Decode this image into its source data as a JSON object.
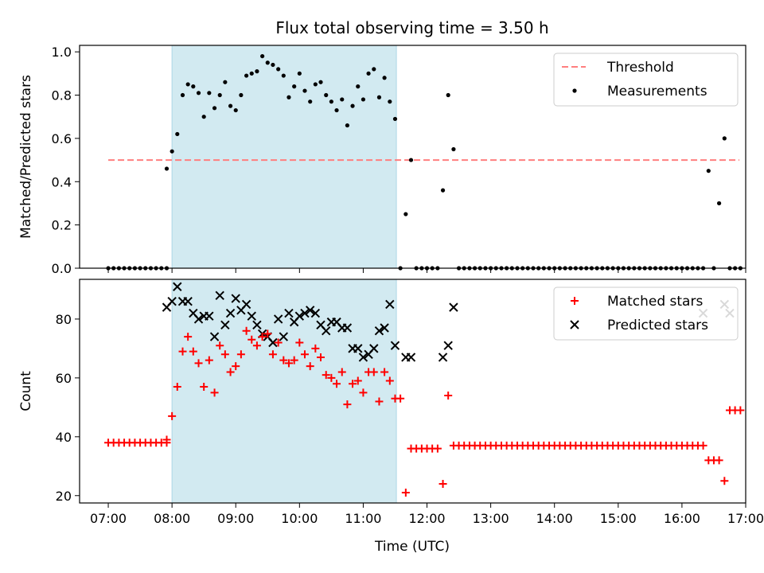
{
  "chart_data": {
    "title": "Flux total observing time = 3.50 h",
    "xlabel": "Time (UTC)",
    "xlim": [
      6.55,
      17.0
    ],
    "x_ticks": [
      {
        "v": 7,
        "label": "07:00"
      },
      {
        "v": 8,
        "label": "08:00"
      },
      {
        "v": 9,
        "label": "09:00"
      },
      {
        "v": 10,
        "label": "10:00"
      },
      {
        "v": 11,
        "label": "11:00"
      },
      {
        "v": 12,
        "label": "12:00"
      },
      {
        "v": 13,
        "label": "13:00"
      },
      {
        "v": 14,
        "label": "14:00"
      },
      {
        "v": 15,
        "label": "15:00"
      },
      {
        "v": 16,
        "label": "16:00"
      },
      {
        "v": 17,
        "label": "17:00"
      }
    ],
    "observing_window": {
      "start": 8.0,
      "end": 11.52,
      "color": "#add8e6"
    },
    "panels": [
      {
        "type": "scatter",
        "ylabel": "Matched/Predicted stars",
        "ylim": [
          0,
          1.03
        ],
        "y_ticks": [
          "0.0",
          "0.2",
          "0.4",
          "0.6",
          "0.8",
          "1.0"
        ],
        "legend": [
          "Threshold",
          "Measurements"
        ],
        "legend_position": "top-right",
        "threshold": {
          "name": "Threshold",
          "value": 0.5,
          "x_range": [
            7.0,
            16.9
          ],
          "color": "#ff7f7f"
        },
        "measurements": {
          "name": "Measurements",
          "color": "#000000",
          "x": [
            7.0,
            7.083,
            7.167,
            7.25,
            7.333,
            7.417,
            7.5,
            7.583,
            7.667,
            7.75,
            7.833,
            7.917,
            7.917,
            8.0,
            8.083,
            8.167,
            8.25,
            8.333,
            8.417,
            8.5,
            8.583,
            8.667,
            8.75,
            8.833,
            8.917,
            9.0,
            9.083,
            9.167,
            9.25,
            9.333,
            9.417,
            9.5,
            9.583,
            9.667,
            9.75,
            9.833,
            9.917,
            10.0,
            10.083,
            10.167,
            10.25,
            10.333,
            10.417,
            10.5,
            10.583,
            10.667,
            10.75,
            10.833,
            10.917,
            11.0,
            11.083,
            11.167,
            11.25,
            11.333,
            11.417,
            11.5,
            11.583,
            11.667,
            11.75,
            11.833,
            11.917,
            12.0,
            12.083,
            12.167,
            12.25,
            12.333,
            12.417,
            12.5,
            12.583,
            12.667,
            12.75,
            12.833,
            12.917,
            13.0,
            13.083,
            13.167,
            13.25,
            13.333,
            13.417,
            13.5,
            13.583,
            13.667,
            13.75,
            13.833,
            13.917,
            14.0,
            14.083,
            14.167,
            14.25,
            14.333,
            14.417,
            14.5,
            14.583,
            14.667,
            14.75,
            14.833,
            14.917,
            15.0,
            15.083,
            15.167,
            15.25,
            15.333,
            15.417,
            15.5,
            15.583,
            15.667,
            15.75,
            15.833,
            15.917,
            16.0,
            16.083,
            16.167,
            16.25,
            16.333,
            16.417,
            16.5,
            16.583,
            16.667,
            16.75,
            16.833,
            16.917
          ],
          "y": [
            0,
            0,
            0,
            0,
            0,
            0,
            0,
            0,
            0,
            0,
            0,
            0,
            0.46,
            0.54,
            0.62,
            0.8,
            0.85,
            0.84,
            0.81,
            0.7,
            0.81,
            0.74,
            0.8,
            0.86,
            0.75,
            0.73,
            0.8,
            0.89,
            0.9,
            0.91,
            0.98,
            0.95,
            0.94,
            0.92,
            0.89,
            0.79,
            0.84,
            0.9,
            0.82,
            0.77,
            0.85,
            0.86,
            0.8,
            0.77,
            0.73,
            0.78,
            0.66,
            0.75,
            0.84,
            0.78,
            0.9,
            0.92,
            0.79,
            0.88,
            0.77,
            0.69,
            0,
            0.25,
            0.5,
            0,
            0,
            0,
            0,
            0,
            0.36,
            0.8,
            0.55,
            0,
            0,
            0,
            0,
            0,
            0,
            0,
            0,
            0,
            0,
            0,
            0,
            0,
            0,
            0,
            0,
            0,
            0,
            0,
            0,
            0,
            0,
            0,
            0,
            0,
            0,
            0,
            0,
            0,
            0,
            0,
            0,
            0,
            0,
            0,
            0,
            0,
            0,
            0,
            0,
            0,
            0,
            0,
            0,
            0,
            0,
            0,
            0.45,
            0,
            0.3,
            0.6,
            0,
            0,
            0
          ]
        }
      },
      {
        "type": "scatter",
        "ylabel": "Count",
        "ylim": [
          17.5,
          93.5
        ],
        "y_ticks": [
          "20",
          "40",
          "60",
          "80"
        ],
        "legend": [
          "Matched stars",
          "Predicted stars"
        ],
        "legend_position": "top-right",
        "series": [
          {
            "name": "Matched stars",
            "marker": "plus",
            "color": "#ff0000",
            "x": [
              7.0,
              7.083,
              7.167,
              7.25,
              7.333,
              7.417,
              7.5,
              7.583,
              7.667,
              7.75,
              7.833,
              7.917,
              7.917,
              8.0,
              8.083,
              8.167,
              8.25,
              8.333,
              8.417,
              8.5,
              8.583,
              8.667,
              8.75,
              8.833,
              8.917,
              9.0,
              9.083,
              9.167,
              9.25,
              9.333,
              9.417,
              9.5,
              9.583,
              9.667,
              9.75,
              9.833,
              9.917,
              10.0,
              10.083,
              10.167,
              10.25,
              10.333,
              10.417,
              10.5,
              10.583,
              10.667,
              10.75,
              10.833,
              10.917,
              11.0,
              11.083,
              11.167,
              11.25,
              11.333,
              11.417,
              11.5,
              11.583,
              11.667,
              11.75,
              11.833,
              11.917,
              12.0,
              12.083,
              12.167,
              12.25,
              12.333,
              12.417,
              12.5,
              12.583,
              12.667,
              12.75,
              12.833,
              12.917,
              13.0,
              13.083,
              13.167,
              13.25,
              13.333,
              13.417,
              13.5,
              13.583,
              13.667,
              13.75,
              13.833,
              13.917,
              14.0,
              14.083,
              14.167,
              14.25,
              14.333,
              14.417,
              14.5,
              14.583,
              14.667,
              14.75,
              14.833,
              14.917,
              15.0,
              15.083,
              15.167,
              15.25,
              15.333,
              15.417,
              15.5,
              15.583,
              15.667,
              15.75,
              15.833,
              15.917,
              16.0,
              16.083,
              16.167,
              16.25,
              16.333,
              16.417,
              16.5,
              16.583,
              16.667,
              16.75,
              16.833,
              16.917
            ],
            "y": [
              38,
              38,
              38,
              38,
              38,
              38,
              38,
              38,
              38,
              38,
              38,
              38,
              39,
              47,
              57,
              69,
              74,
              69,
              65,
              57,
              66,
              55,
              71,
              68,
              62,
              64,
              68,
              76,
              73,
              71,
              74,
              75,
              68,
              72,
              66,
              65,
              66,
              72,
              68,
              64,
              70,
              67,
              61,
              60,
              58,
              62,
              51,
              58,
              59,
              55,
              62,
              62,
              52,
              62,
              59,
              53,
              53,
              21,
              36,
              36,
              36,
              36,
              36,
              36,
              24,
              54,
              37,
              37,
              37,
              37,
              37,
              37,
              37,
              37,
              37,
              37,
              37,
              37,
              37,
              37,
              37,
              37,
              37,
              37,
              37,
              37,
              37,
              37,
              37,
              37,
              37,
              37,
              37,
              37,
              37,
              37,
              37,
              37,
              37,
              37,
              37,
              37,
              37,
              37,
              37,
              37,
              37,
              37,
              37,
              37,
              37,
              37,
              37,
              37,
              32,
              32,
              32,
              25,
              49,
              49,
              49
            ]
          },
          {
            "name": "Predicted stars",
            "marker": "x",
            "color": "#000000",
            "x": [
              7.917,
              8.0,
              8.083,
              8.167,
              8.25,
              8.333,
              8.417,
              8.5,
              8.583,
              8.667,
              8.75,
              8.833,
              8.917,
              9.0,
              9.083,
              9.167,
              9.25,
              9.333,
              9.417,
              9.5,
              9.583,
              9.667,
              9.75,
              9.833,
              9.917,
              10.0,
              10.083,
              10.167,
              10.25,
              10.333,
              10.417,
              10.5,
              10.583,
              10.667,
              10.75,
              10.833,
              10.917,
              11.0,
              11.083,
              11.167,
              11.25,
              11.333,
              11.417,
              11.5,
              11.667,
              11.75,
              12.25,
              12.333,
              12.417,
              16.333,
              16.667,
              16.75
            ],
            "y": [
              84,
              86,
              91,
              86,
              86,
              82,
              80,
              81,
              81,
              74,
              88,
              78,
              82,
              87,
              83,
              85,
              81,
              78,
              75,
              74,
              72,
              80,
              74,
              82,
              79,
              81,
              82,
              83,
              82,
              78,
              76,
              79,
              79,
              77,
              77,
              70,
              70,
              67,
              68,
              70,
              76,
              77,
              85,
              71,
              67,
              67,
              67,
              71,
              84,
              82,
              85,
              82
            ]
          }
        ]
      }
    ]
  }
}
